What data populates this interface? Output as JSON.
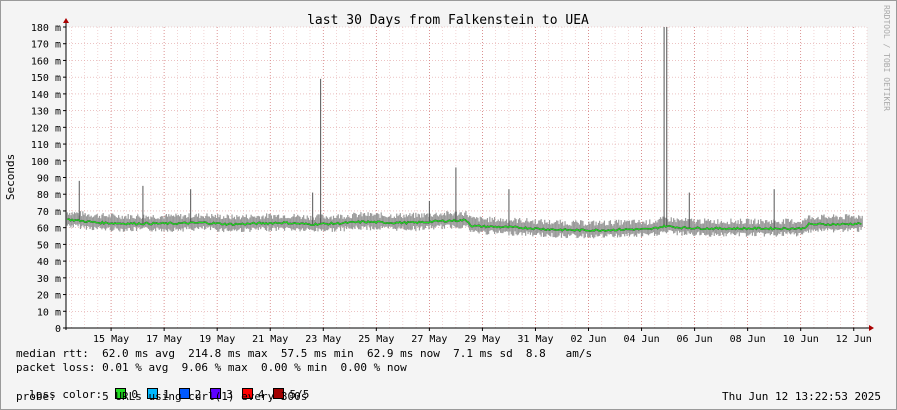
{
  "chart_data": {
    "type": "line",
    "title": "last 30 Days from Falkenstein to UEA",
    "ylabel": "Seconds",
    "watermark": "RRDTOOL / TOBI OETIKER",
    "ylim": [
      0,
      180
    ],
    "y_tick_labels": [
      "0",
      "10 m",
      "20 m",
      "30 m",
      "40 m",
      "50 m",
      "60 m",
      "70 m",
      "80 m",
      "90 m",
      "100 m",
      "110 m",
      "120 m",
      "130 m",
      "140 m",
      "150 m",
      "160 m",
      "170 m",
      "180 m"
    ],
    "x_tick_labels": [
      "15 May",
      "17 May",
      "19 May",
      "21 May",
      "23 May",
      "25 May",
      "27 May",
      "29 May",
      "31 May",
      "02 Jun",
      "04 Jun",
      "06 Jun",
      "08 Jun",
      "10 Jun",
      "12 Jun"
    ],
    "x_range_days": [
      13.3,
      43.5
    ],
    "x_tick_days": [
      15,
      17,
      19,
      21,
      23,
      25,
      27,
      29,
      31,
      33,
      35,
      37,
      39,
      41,
      43
    ],
    "grid": true,
    "series": [
      {
        "color": "#22dd22",
        "x_days": [
          13.3,
          14.5,
          15.5,
          16.5,
          17.5,
          18.5,
          19.5,
          20.5,
          21.5,
          22.5,
          23.5,
          24.5,
          25.5,
          26.5,
          27.5,
          28.4,
          28.6,
          29.5,
          30.5,
          31.5,
          32.5,
          33.5,
          34.5,
          35.3,
          35.6,
          35.9,
          36.5,
          37.5,
          38.5,
          39.5,
          40.5,
          41.1,
          41.3,
          42.5,
          43.3
        ],
        "values": [
          65,
          63,
          62.5,
          62.5,
          62.5,
          63,
          62,
          62.5,
          63,
          62,
          62.5,
          63.5,
          63,
          63,
          64,
          64.5,
          61,
          60.5,
          60,
          59,
          58.5,
          58.5,
          59,
          59,
          60,
          61,
          60,
          59.5,
          59.5,
          59.5,
          59.5,
          59.5,
          62,
          62,
          62.5
        ]
      }
    ],
    "spikes": [
      {
        "day": 13.8,
        "value": 88
      },
      {
        "day": 16.2,
        "value": 85
      },
      {
        "day": 18.0,
        "value": 83
      },
      {
        "day": 22.6,
        "value": 81
      },
      {
        "day": 22.9,
        "value": 149
      },
      {
        "day": 27.0,
        "value": 76
      },
      {
        "day": 28.0,
        "value": 96
      },
      {
        "day": 30.0,
        "value": 83
      },
      {
        "day": 35.85,
        "value": 180
      },
      {
        "day": 35.95,
        "value": 180
      },
      {
        "day": 36.8,
        "value": 81
      },
      {
        "day": 40.0,
        "value": 83
      }
    ]
  },
  "stats": {
    "median_rtt": "median rtt:  62.0 ms avg  214.8 ms max  57.5 ms min  62.9 ms now  7.1 ms sd  8.8   am/s",
    "packet_loss": "packet loss: 0.01 % avg  9.06 % max  0.00 % min  0.00 % now",
    "loss_color_label": "loss color:",
    "loss_colors": [
      {
        "label": "0",
        "color": "#22dd22"
      },
      {
        "label": "1",
        "color": "#00b8ff"
      },
      {
        "label": "2",
        "color": "#0059ff"
      },
      {
        "label": "3",
        "color": "#5e00ff"
      },
      {
        "label": "4",
        "color": "#ff0000"
      },
      {
        "label": "5/5",
        "color": "#a10000"
      }
    ],
    "probe": "probe:       5 URLs using curl(1) every 300s",
    "date": "Thu Jun 12 13:22:53 2025"
  }
}
